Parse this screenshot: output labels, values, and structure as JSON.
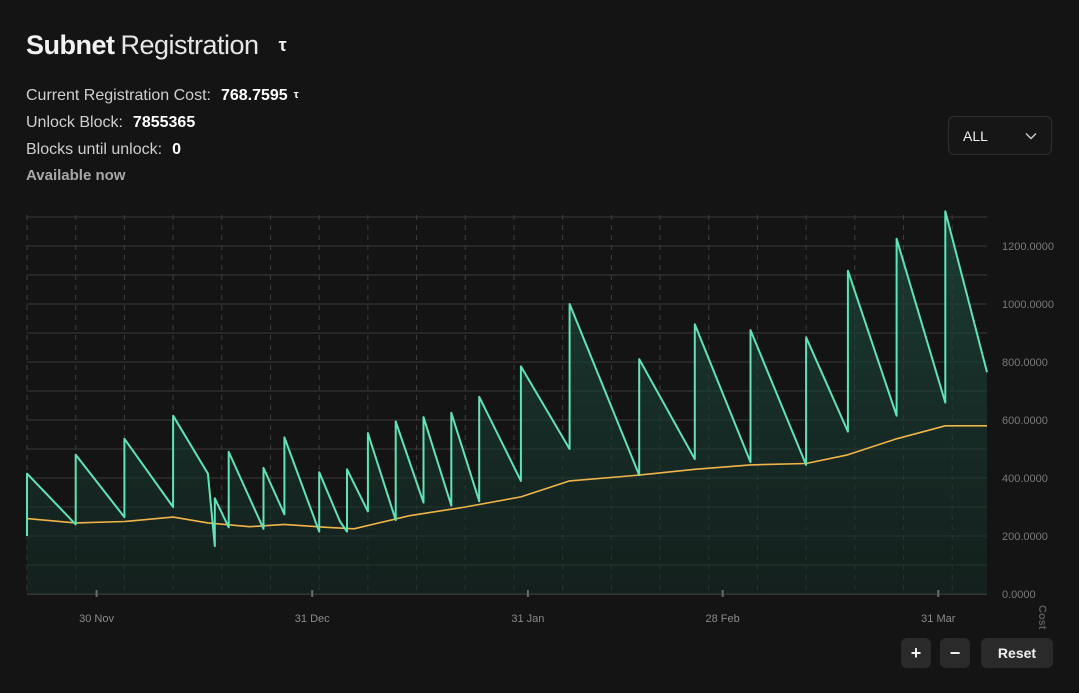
{
  "header": {
    "title_bold": "Subnet",
    "title_light": "Registration",
    "tao_symbol": "τ"
  },
  "info": {
    "cost_label": "Current Registration Cost:",
    "cost_value": "768.7595",
    "cost_symbol": "τ",
    "unlock_label": "Unlock Block:",
    "unlock_value": "7855365",
    "blocks_label": "Blocks until unlock:",
    "blocks_value": "0",
    "status": "Available now"
  },
  "controls": {
    "range_selected": "ALL",
    "zoom_in": "+",
    "zoom_out": "−",
    "reset": "Reset"
  },
  "colors": {
    "cost_line": "#5fe3b8",
    "avg_line": "#f0b54a",
    "background": "#141414"
  },
  "chart_data": {
    "type": "line",
    "ylabel": "Cost (TAO)",
    "ylim": [
      0,
      1300
    ],
    "yticks": [
      "0.0000",
      "200.0000",
      "400.0000",
      "600.0000",
      "800.0000",
      "1000.0000",
      "1200.0000"
    ],
    "x_axis": "date",
    "xlim": [
      "2024-11-20",
      "2025-04-01"
    ],
    "xticks": [
      {
        "date": "2024-11-30",
        "label": "30 Nov"
      },
      {
        "date": "2024-12-31",
        "label": "31 Dec"
      },
      {
        "date": "2025-01-31",
        "label": "31 Jan"
      },
      {
        "date": "2025-02-28",
        "label": "28 Feb"
      },
      {
        "date": "2025-03-31",
        "label": "31 Mar"
      }
    ],
    "grid": true,
    "series": [
      {
        "name": "Registration cost",
        "points": [
          [
            "2024-11-20",
            200
          ],
          [
            "2024-11-20",
            415
          ],
          [
            "2024-11-27",
            240
          ],
          [
            "2024-11-27",
            480
          ],
          [
            "2024-12-04",
            265
          ],
          [
            "2024-12-04",
            535
          ],
          [
            "2024-12-11",
            300
          ],
          [
            "2024-12-11",
            615
          ],
          [
            "2024-12-16",
            415
          ],
          [
            "2024-12-17",
            165
          ],
          [
            "2024-12-17",
            330
          ],
          [
            "2024-12-19",
            230
          ],
          [
            "2024-12-19",
            490
          ],
          [
            "2024-12-24",
            225
          ],
          [
            "2024-12-24",
            435
          ],
          [
            "2024-12-27",
            275
          ],
          [
            "2024-12-27",
            540
          ],
          [
            "2025-01-01",
            215
          ],
          [
            "2025-01-01",
            420
          ],
          [
            "2025-01-04",
            250
          ],
          [
            "2025-01-05",
            215
          ],
          [
            "2025-01-05",
            430
          ],
          [
            "2025-01-08",
            285
          ],
          [
            "2025-01-08",
            555
          ],
          [
            "2025-01-12",
            255
          ],
          [
            "2025-01-12",
            595
          ],
          [
            "2025-01-16",
            315
          ],
          [
            "2025-01-16",
            610
          ],
          [
            "2025-01-20",
            305
          ],
          [
            "2025-01-20",
            625
          ],
          [
            "2025-01-24",
            320
          ],
          [
            "2025-01-24",
            680
          ],
          [
            "2025-01-30",
            390
          ],
          [
            "2025-01-30",
            785
          ],
          [
            "2025-02-06",
            500
          ],
          [
            "2025-02-06",
            1000
          ],
          [
            "2025-02-16",
            410
          ],
          [
            "2025-02-16",
            810
          ],
          [
            "2025-02-24",
            465
          ],
          [
            "2025-02-24",
            930
          ],
          [
            "2025-03-04",
            455
          ],
          [
            "2025-03-04",
            910
          ],
          [
            "2025-03-12",
            445
          ],
          [
            "2025-03-12",
            885
          ],
          [
            "2025-03-18",
            560
          ],
          [
            "2025-03-18",
            1115
          ],
          [
            "2025-03-25",
            615
          ],
          [
            "2025-03-25",
            1225
          ],
          [
            "2025-04-01",
            660
          ],
          [
            "2025-04-01",
            1320
          ],
          [
            "2025-04-07",
            765
          ]
        ]
      },
      {
        "name": "Moving average",
        "points": [
          [
            "2024-11-20",
            260
          ],
          [
            "2024-11-27",
            245
          ],
          [
            "2024-12-04",
            250
          ],
          [
            "2024-12-11",
            265
          ],
          [
            "2024-12-16",
            245
          ],
          [
            "2024-12-22",
            232
          ],
          [
            "2024-12-27",
            240
          ],
          [
            "2025-01-02",
            230
          ],
          [
            "2025-01-06",
            225
          ],
          [
            "2025-01-14",
            270
          ],
          [
            "2025-01-22",
            300
          ],
          [
            "2025-01-30",
            335
          ],
          [
            "2025-02-06",
            390
          ],
          [
            "2025-02-16",
            410
          ],
          [
            "2025-02-24",
            430
          ],
          [
            "2025-03-04",
            445
          ],
          [
            "2025-03-12",
            450
          ],
          [
            "2025-03-18",
            480
          ],
          [
            "2025-03-25",
            535
          ],
          [
            "2025-04-01",
            580
          ],
          [
            "2025-04-07",
            580
          ]
        ]
      }
    ]
  }
}
